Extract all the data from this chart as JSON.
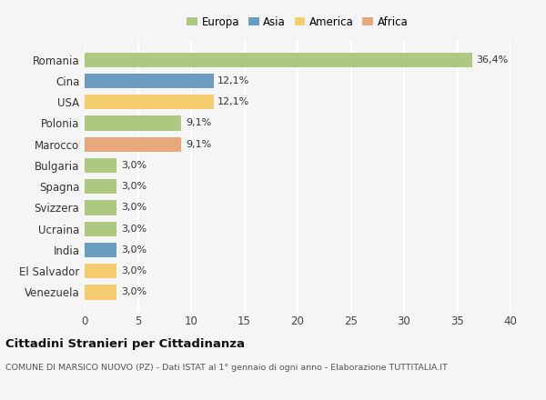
{
  "categories": [
    "Romania",
    "Cina",
    "USA",
    "Polonia",
    "Marocco",
    "Bulgaria",
    "Spagna",
    "Svizzera",
    "Ucraina",
    "India",
    "El Salvador",
    "Venezuela"
  ],
  "values": [
    36.4,
    12.1,
    12.1,
    9.1,
    9.1,
    3.0,
    3.0,
    3.0,
    3.0,
    3.0,
    3.0,
    3.0
  ],
  "labels": [
    "36,4%",
    "12,1%",
    "12,1%",
    "9,1%",
    "9,1%",
    "3,0%",
    "3,0%",
    "3,0%",
    "3,0%",
    "3,0%",
    "3,0%",
    "3,0%"
  ],
  "colors": [
    "#adc97f",
    "#6b9dc2",
    "#f5cc6e",
    "#adc97f",
    "#e8a87c",
    "#adc97f",
    "#adc97f",
    "#adc97f",
    "#adc97f",
    "#6b9dc2",
    "#f5cc6e",
    "#f5cc6e"
  ],
  "legend_labels": [
    "Europa",
    "Asia",
    "America",
    "Africa"
  ],
  "legend_colors": [
    "#adc97f",
    "#6b9dc2",
    "#f5cc6e",
    "#e8a87c"
  ],
  "title": "Cittadini Stranieri per Cittadinanza",
  "subtitle": "COMUNE DI MARSICO NUOVO (PZ) - Dati ISTAT al 1° gennaio di ogni anno - Elaborazione TUTTITALIA.IT",
  "xlim": [
    0,
    40
  ],
  "xticks": [
    0,
    5,
    10,
    15,
    20,
    25,
    30,
    35,
    40
  ],
  "background_color": "#f5f5f5",
  "grid_color": "#ffffff",
  "bar_height": 0.7
}
